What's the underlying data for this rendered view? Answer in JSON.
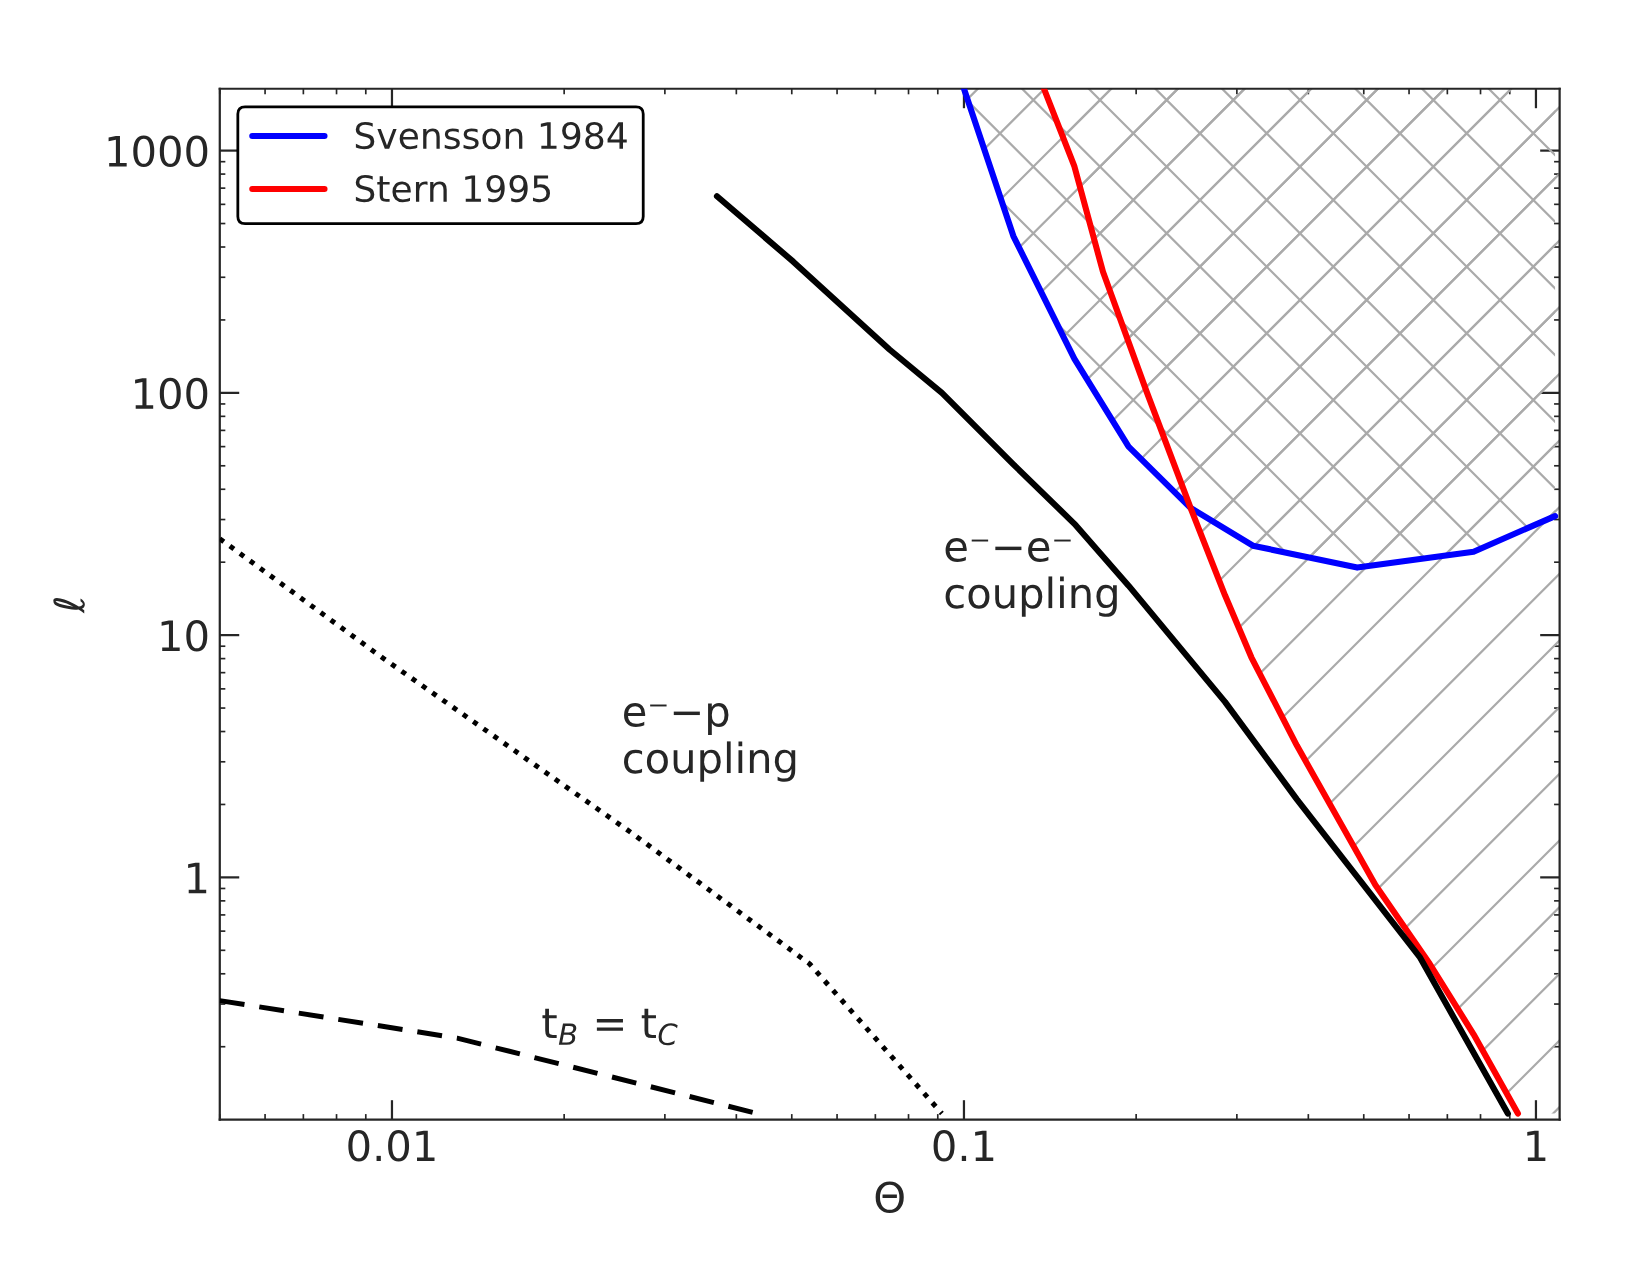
{
  "chart_data": {
    "type": "line",
    "xlabel": "Θ",
    "ylabel": "ℓ",
    "log": "xy",
    "xlim": [
      0.005,
      1.1
    ],
    "ylim": [
      0.1,
      1800
    ],
    "xticks": [
      0.01,
      0.1,
      1
    ],
    "yticks": [
      1,
      10,
      100,
      1000
    ],
    "legend": "top left",
    "grid": false,
    "marker": "none",
    "series": [
      {
        "name": "Svensson 1984",
        "color": "#0000ff",
        "line_style": "solid",
        "x": [
          0.1,
          0.122,
          0.156,
          0.194,
          0.249,
          0.32,
          0.487,
          0.778,
          1.08
        ],
        "values": [
          1800,
          444,
          138,
          60,
          33.5,
          23.4,
          19,
          22.1,
          31
        ]
      },
      {
        "name": "Stern 1995",
        "color": "#ff0000",
        "line_style": "solid",
        "x": [
          0.138,
          0.156,
          0.175,
          0.209,
          0.249,
          0.286,
          0.318,
          0.382,
          0.524,
          0.652,
          0.778,
          0.93
        ],
        "values": [
          1800,
          860,
          316,
          100,
          33.5,
          14.6,
          8.1,
          3.5,
          0.93,
          0.44,
          0.225,
          0.106
        ]
      },
      {
        "color": "#000000",
        "line_style": "solid",
        "x": [
          0.037,
          0.0503,
          0.0741,
          0.0915,
          0.122,
          0.156,
          0.194,
          0.286,
          0.382,
          0.626,
          0.893
        ],
        "values": [
          648,
          348,
          151,
          100,
          50.7,
          28.8,
          16,
          5.3,
          2.1,
          0.47,
          0.106
        ]
      },
      {
        "color": "#000000",
        "line_style": "dotted",
        "x": [
          0.005,
          0.0096,
          0.013,
          0.0264,
          0.0537,
          0.0915
        ],
        "values": [
          25,
          8.1,
          4.9,
          1.51,
          0.44,
          0.106
        ]
      },
      {
        "color": "#000000",
        "line_style": "dashed",
        "x": [
          0.005,
          0.013,
          0.0435
        ],
        "values": [
          0.31,
          0.217,
          0.106
        ]
      }
    ],
    "annotations": [
      "e⁻−e⁻\ncoupling",
      "e⁻−p\ncoupling",
      "t$_{B}$ = t$_{C}$"
    ]
  }
}
